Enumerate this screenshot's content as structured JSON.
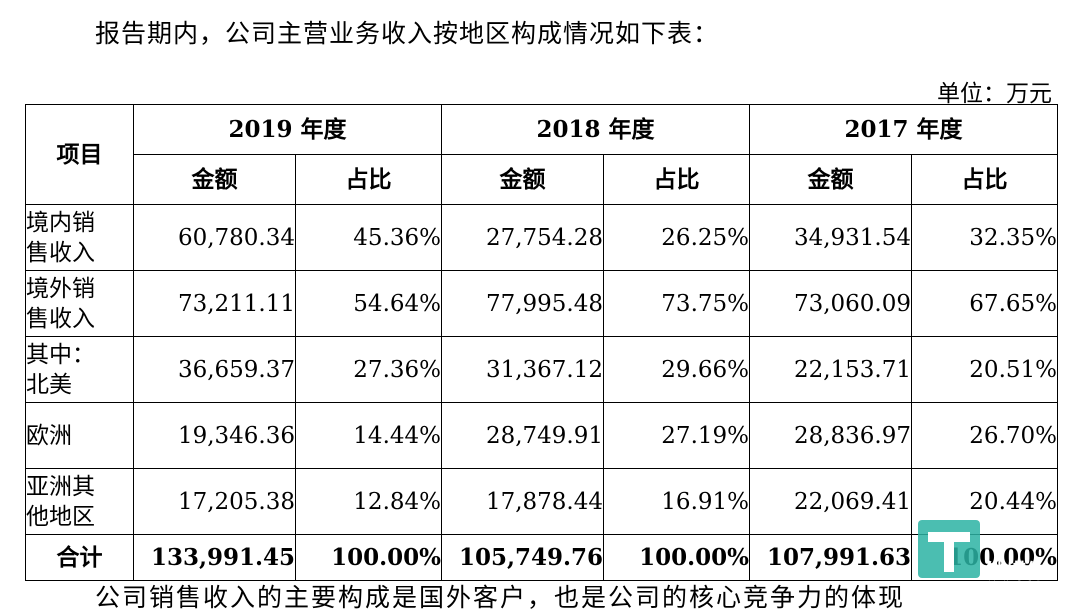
{
  "intro_text": "报告期内，公司主营业务收入按地区构成情况如下表：",
  "unit_text": "单位：万元",
  "table": {
    "item_header": "项目",
    "years": [
      "2019 年度",
      "2018 年度",
      "2017 年度"
    ],
    "sub_headers": [
      "金额",
      "占比",
      "金额",
      "占比",
      "金额",
      "占比"
    ],
    "rows": [
      {
        "label_l1": "境内销",
        "label_l2": "售收入",
        "cells": [
          "60,780.34",
          "45.36%",
          "27,754.28",
          "26.25%",
          "34,931.54",
          "32.35%"
        ]
      },
      {
        "label_l1": "境外销",
        "label_l2": "售收入",
        "cells": [
          "73,211.11",
          "54.64%",
          "77,995.48",
          "73.75%",
          "73,060.09",
          "67.65%"
        ]
      },
      {
        "label_l1": "其中：",
        "label_l2": "北美",
        "cells": [
          "36,659.37",
          "27.36%",
          "31,367.12",
          "29.66%",
          "22,153.71",
          "20.51%"
        ]
      },
      {
        "label_l1": "欧洲",
        "label_l2": "",
        "cells": [
          "19,346.36",
          "14.44%",
          "28,749.91",
          "27.19%",
          "28,836.97",
          "26.70%"
        ]
      },
      {
        "label_l1": "亚洲其",
        "label_l2": "他地区",
        "cells": [
          "17,205.38",
          "12.84%",
          "17,878.44",
          "16.91%",
          "22,069.41",
          "20.44%"
        ]
      }
    ],
    "total": {
      "label": "合计",
      "cells": [
        "133,991.45",
        "100.00%",
        "105,749.76",
        "100.00%",
        "107,991.63",
        "100.00%"
      ]
    }
  },
  "bottom_text": "公司销售收入的主要构成是国外客户，也是公司的核心竞争力的体现",
  "watermark": {
    "text": "钛媒体",
    "brand_color": "#2bb3a3"
  }
}
